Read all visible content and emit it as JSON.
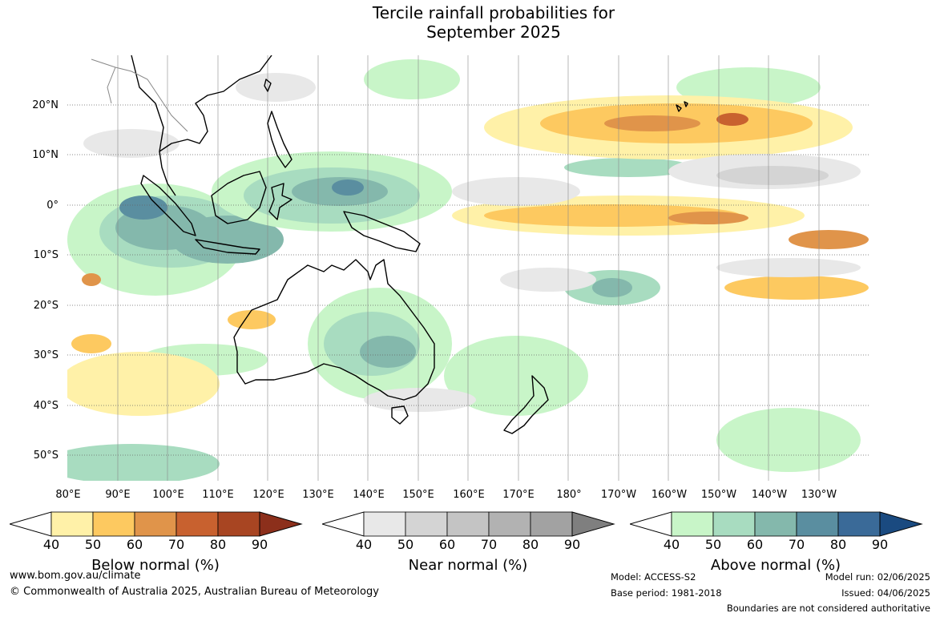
{
  "title": {
    "line1": "Tercile rainfall probabilities for",
    "line2": "September 2025"
  },
  "axes": {
    "latitude_labels": [
      "20°N",
      "10°N",
      "0°",
      "10°S",
      "20°S",
      "30°S",
      "40°S",
      "50°S"
    ],
    "longitude_labels": [
      "80°E",
      "90°E",
      "100°E",
      "110°E",
      "120°E",
      "130°E",
      "140°E",
      "150°E",
      "160°E",
      "170°E",
      "180°",
      "170°W",
      "160°W",
      "150°W",
      "140°W",
      "130°W"
    ]
  },
  "colorbars": [
    {
      "title": "Below normal (%)",
      "ticks": [
        "40",
        "50",
        "60",
        "70",
        "80",
        "90"
      ],
      "colors": [
        "#fff1a8",
        "#fdc960",
        "#e0944a",
        "#c8612f",
        "#a84522",
        "#8c2f1b"
      ]
    },
    {
      "title": "Near normal (%)",
      "ticks": [
        "40",
        "50",
        "60",
        "70",
        "80",
        "90"
      ],
      "colors": [
        "#e8e8e8",
        "#d4d4d4",
        "#c4c4c4",
        "#b2b2b2",
        "#a2a2a2",
        "#7f7f7f"
      ]
    },
    {
      "title": "Above normal (%)",
      "ticks": [
        "40",
        "50",
        "60",
        "70",
        "80",
        "90"
      ],
      "colors": [
        "#c8f5c8",
        "#a8dcc0",
        "#84b8ac",
        "#5a8ea0",
        "#3a6a98",
        "#1a4a80"
      ]
    }
  ],
  "footer": {
    "url": "www.bom.gov.au/climate",
    "copyright": "© Commonwealth of Australia 2025, Australian Bureau of Meteorology",
    "model": "Model: ACCESS-S2",
    "base_period": "Base period: 1981-2018",
    "model_run": "Model run: 02/06/2025",
    "issued": "Issued: 04/06/2025",
    "disclaimer": "Boundaries are not considered authoritative"
  }
}
